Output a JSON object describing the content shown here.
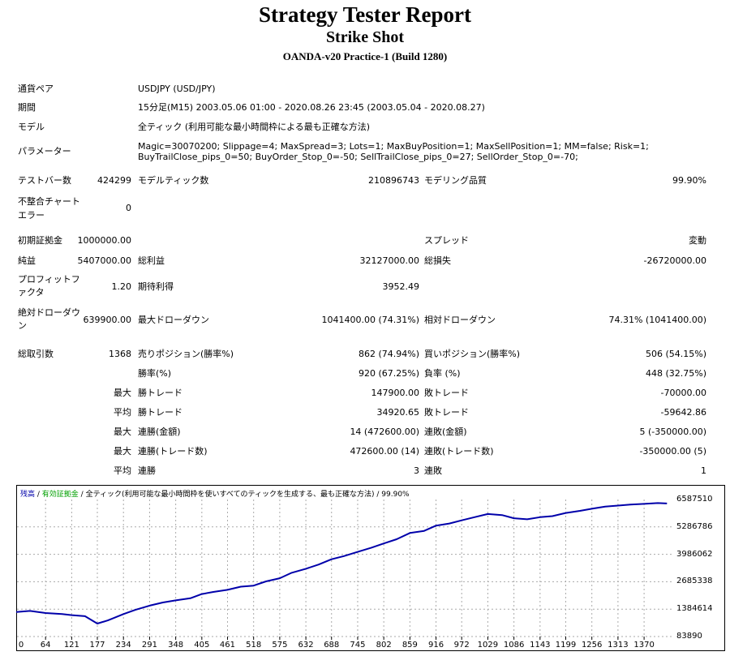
{
  "title": "Strategy Tester Report",
  "subtitle": "Strike Shot",
  "server": "OANDA-v20 Practice-1 (Build 1280)",
  "info": {
    "pair_label": "通貨ペア",
    "pair_value": "USDJPY (USD/JPY)",
    "period_label": "期間",
    "period_value": "15分足(M15) 2003.05.06 01:00 - 2020.08.26 23:45 (2003.05.04 - 2020.08.27)",
    "model_label": "モデル",
    "model_value": "全ティック (利用可能な最小時間枠による最も正確な方法)",
    "params_label": "パラメーター",
    "params_value": "Magic=30070200; Slippage=4; MaxSpread=3; Lots=1; MaxBuyPosition=1; MaxSellPosition=1; MM=false; Risk=1; BuyTrailClose_pips_0=50; BuyOrder_Stop_0=-50; SellTrailClose_pips_0=27; SellOrder_Stop_0=-70;",
    "bars_label": "テストバー数",
    "bars_value": "424299",
    "ticks_label": "モデルティック数",
    "ticks_value": "210896743",
    "quality_label": "モデリング品質",
    "quality_value": "99.90%",
    "mismatch_label": "不整合チャートエラー",
    "mismatch_value": "0"
  },
  "stats": {
    "deposit_label": "初期証拠金",
    "deposit_value": "1000000.00",
    "spread_label": "スプレッド",
    "spread_value": "変動",
    "netprofit_label": "純益",
    "netprofit_value": "5407000.00",
    "grossprofit_label": "総利益",
    "grossprofit_value": "32127000.00",
    "grossloss_label": "総損失",
    "grossloss_value": "-26720000.00",
    "pf_label": "プロフィットファクタ",
    "pf_value": "1.20",
    "expected_label": "期待利得",
    "expected_value": "3952.49",
    "absdd_label": "絶対ドローダウン",
    "absdd_value": "639900.00",
    "maxdd_label": "最大ドローダウン",
    "maxdd_value": "1041400.00 (74.31%)",
    "reldd_label": "相対ドローダウン",
    "reldd_value": "74.31% (1041400.00)",
    "trades_label": "総取引数",
    "trades_value": "1368",
    "short_label": "売りポジション(勝率%)",
    "short_value": "862 (74.94%)",
    "long_label": "買いポジション(勝率%)",
    "long_value": "506 (54.15%)",
    "win_label": "勝率(%)",
    "win_value": "920 (67.25%)",
    "loss_label": "負率 (%)",
    "loss_value": "448 (32.75%)",
    "max_label": "最大",
    "avg_label": "平均",
    "maxwin_label": "勝トレード",
    "maxwin_value": "147900.00",
    "maxloss_label": "敗トレード",
    "maxloss_value": "-70000.00",
    "avgwin_label": "勝トレード",
    "avgwin_value": "34920.65",
    "avgloss_label": "敗トレード",
    "avgloss_value": "-59642.86",
    "conswin_label": "連勝(金額)",
    "conswin_value": "14 (472600.00)",
    "consloss_label": "連敗(金額)",
    "consloss_value": "5 (-350000.00)",
    "conswin2_label": "連勝(トレード数)",
    "conswin2_value": "472600.00 (14)",
    "consloss2_label": "連敗(トレード数)",
    "consloss2_value": "-350000.00 (5)",
    "avgconswin_label": "連勝",
    "avgconswin_value": "3",
    "avgconsloss_label": "連敗",
    "avgconsloss_value": "1"
  },
  "chart_legend": {
    "balance": "残高",
    "sep1": " / ",
    "equity": "有効証拠金",
    "sep2": " / ",
    "model": "全ティック(利用可能な最小時間枠を使いすべてのティックを生成する、最も正確な方法)",
    "sep3": " / ",
    "quality": "99.90%"
  },
  "chart_data": {
    "type": "line",
    "title": "",
    "xlabel": "",
    "ylabel": "",
    "x_ticks": [
      "0",
      "64",
      "121",
      "177",
      "234",
      "291",
      "348",
      "405",
      "461",
      "518",
      "575",
      "632",
      "688",
      "745",
      "802",
      "859",
      "916",
      "972",
      "1029",
      "1086",
      "1143",
      "1199",
      "1256",
      "1313",
      "1370"
    ],
    "y_ticks": [
      "6587510",
      "5286786",
      "3986062",
      "2685338",
      "1384614",
      "83890"
    ],
    "xlim": [
      0,
      1430
    ],
    "ylim": [
      83890,
      6587510
    ],
    "grid": true,
    "line_color": "#0000aa",
    "series": [
      {
        "x": [
          0,
          30,
          64,
          100,
          121,
          150,
          177,
          200,
          234,
          260,
          291,
          320,
          348,
          380,
          405,
          430,
          461,
          490,
          518,
          545,
          575,
          600,
          632,
          660,
          688,
          715,
          745,
          775,
          802,
          830,
          859,
          890,
          916,
          945,
          972,
          1000,
          1029,
          1060,
          1086,
          1115,
          1143,
          1170,
          1199,
          1230,
          1256,
          1285,
          1313,
          1340,
          1370,
          1400,
          1420
        ],
        "y": [
          1250000,
          1300000,
          1200000,
          1150000,
          1100000,
          1050000,
          700000,
          850000,
          1150000,
          1350000,
          1550000,
          1700000,
          1800000,
          1900000,
          2100000,
          2200000,
          2300000,
          2450000,
          2500000,
          2700000,
          2850000,
          3100000,
          3300000,
          3500000,
          3750000,
          3900000,
          4100000,
          4300000,
          4500000,
          4700000,
          5000000,
          5100000,
          5350000,
          5450000,
          5600000,
          5750000,
          5900000,
          5850000,
          5700000,
          5650000,
          5750000,
          5800000,
          5950000,
          6050000,
          6150000,
          6250000,
          6300000,
          6350000,
          6380000,
          6420000,
          6400000
        ]
      }
    ]
  }
}
